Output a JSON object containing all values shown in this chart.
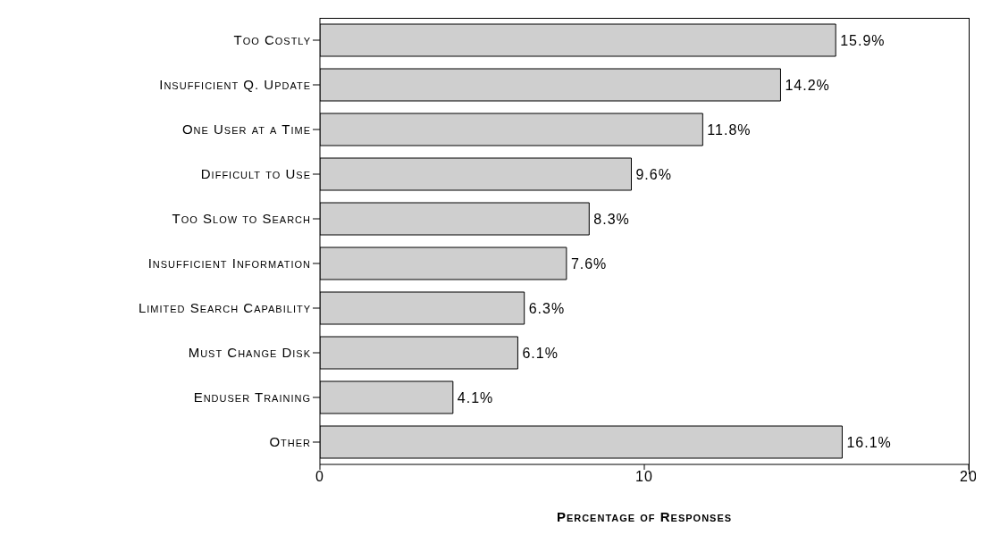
{
  "chart_data": {
    "type": "bar",
    "orientation": "horizontal",
    "xlabel": "Percentage of Responses",
    "categories": [
      "Too Costly",
      "Insufficient Q. Update",
      "One User at a Time",
      "Difficult to Use",
      "Too Slow to Search",
      "Insufficient Information",
      "Limited Search Capability",
      "Must Change Disk",
      "Enduser Training",
      "Other"
    ],
    "values": [
      15.9,
      14.2,
      11.8,
      9.6,
      8.3,
      7.6,
      6.3,
      6.1,
      4.1,
      16.1
    ],
    "value_labels": [
      "15.9%",
      "14.2%",
      "11.8%",
      "9.6%",
      "8.3%",
      "7.6%",
      "6.3%",
      "6.1%",
      "4.1%",
      "16.1%"
    ],
    "color": "#cfcfcf",
    "xlim": [
      0,
      20
    ],
    "xticks": [
      0,
      10,
      20
    ],
    "grid": false,
    "legend": false
  }
}
